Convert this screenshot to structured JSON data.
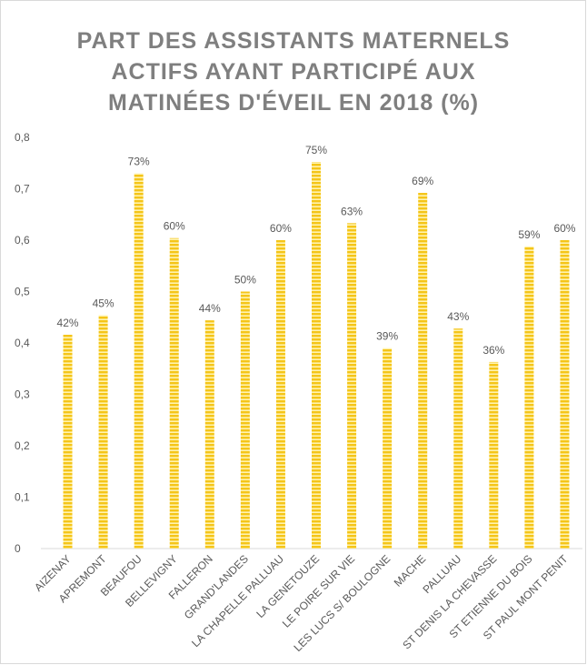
{
  "chart_data": {
    "type": "bar",
    "title": [
      "PART DES ASSISTANTS MATERNELS",
      "ACTIFS AYANT PARTICIPÉ AUX",
      "MATINÉES D'ÉVEIL EN 2018 (%)"
    ],
    "categories": [
      "AIZENAY",
      "APREMONT",
      "BEAUFOU",
      "BELLEVIGNY",
      "FALLERON",
      "GRAND'LANDES",
      "LA CHAPELLE PALLUAU",
      "LA GENETOUZE",
      "LE POIRE SUR VIE",
      "LES LUCS S/ BOULOGNE",
      "MACHE",
      "PALLUAU",
      "ST DENIS LA CHEVASSE",
      "ST ETIENNE DU BOIS",
      "ST PAUL MONT PENIT"
    ],
    "values": [
      0.416,
      0.454,
      0.73,
      0.604,
      0.444,
      0.5,
      0.6,
      0.752,
      0.633,
      0.39,
      0.692,
      0.428,
      0.363,
      0.588,
      0.6
    ],
    "value_labels": [
      "42%",
      "45%",
      "73%",
      "60%",
      "44%",
      "50%",
      "60%",
      "75%",
      "63%",
      "39%",
      "69%",
      "43%",
      "36%",
      "59%",
      "60%"
    ],
    "color": "#f5c518",
    "ylim": [
      0,
      0.8
    ],
    "yticks": [
      0,
      {
        "value": 0.1,
        "label": "0,1"
      },
      {
        "value": 0.2,
        "label": "0,2"
      },
      {
        "value": 0.3,
        "label": "0,3"
      },
      {
        "value": 0.4,
        "label": "0,4"
      },
      {
        "value": 0.5,
        "label": "0,5"
      },
      {
        "value": 0.6,
        "label": "0,6"
      },
      {
        "value": 0.7,
        "label": "0,7"
      },
      {
        "value": 0.8,
        "label": "0,8"
      }
    ],
    "grid": false
  }
}
